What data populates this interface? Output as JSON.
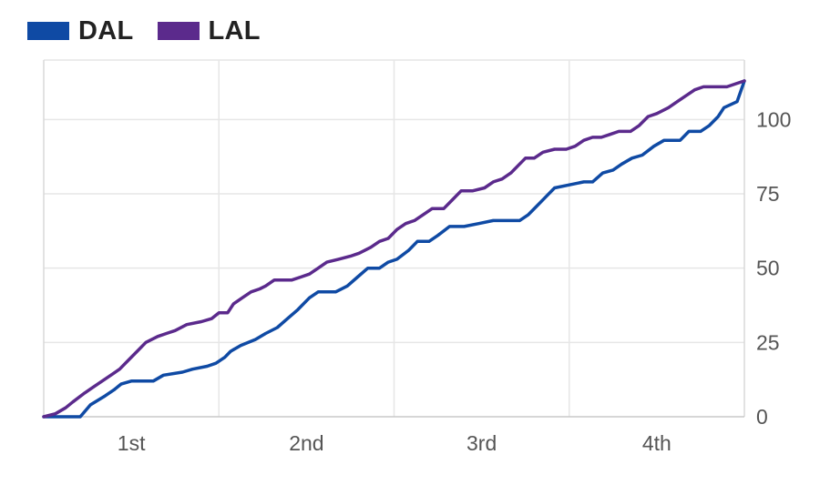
{
  "legend": [
    {
      "label": "DAL",
      "color": "#0f4aa4"
    },
    {
      "label": "LAL",
      "color": "#5b2a8c"
    }
  ],
  "chart_data": {
    "type": "line",
    "x_ticks": [
      "1st",
      "2nd",
      "3rd",
      "4th"
    ],
    "xlim": [
      0,
      48
    ],
    "ylim": [
      0,
      120
    ],
    "y_ticks": [
      0,
      25,
      50,
      75,
      100
    ],
    "y_axis_side": "right",
    "grid": true,
    "legend_position": "top-left",
    "series": [
      {
        "name": "DAL",
        "color": "#0f4aa4",
        "points": [
          [
            0,
            0
          ],
          [
            2.5,
            0
          ],
          [
            3.2,
            4
          ],
          [
            4.2,
            7
          ],
          [
            4.8,
            9
          ],
          [
            5.3,
            11
          ],
          [
            6.0,
            12
          ],
          [
            7.5,
            12
          ],
          [
            8.2,
            14
          ],
          [
            9.5,
            15
          ],
          [
            10.2,
            16
          ],
          [
            11.2,
            17
          ],
          [
            11.8,
            18
          ],
          [
            12.4,
            20
          ],
          [
            12.8,
            22
          ],
          [
            13.5,
            24
          ],
          [
            14.5,
            26
          ],
          [
            15.2,
            28
          ],
          [
            16.0,
            30
          ],
          [
            16.7,
            33
          ],
          [
            17.4,
            36
          ],
          [
            18.2,
            40
          ],
          [
            18.8,
            42
          ],
          [
            20.0,
            42
          ],
          [
            20.8,
            44
          ],
          [
            21.5,
            47
          ],
          [
            22.2,
            50
          ],
          [
            23.0,
            50
          ],
          [
            23.6,
            52
          ],
          [
            24.2,
            53
          ],
          [
            25.0,
            56
          ],
          [
            25.6,
            59
          ],
          [
            26.4,
            59
          ],
          [
            27.0,
            61
          ],
          [
            27.8,
            64
          ],
          [
            28.8,
            64
          ],
          [
            29.8,
            65
          ],
          [
            30.8,
            66
          ],
          [
            32.0,
            66
          ],
          [
            32.6,
            66
          ],
          [
            33.2,
            68
          ],
          [
            33.8,
            71
          ],
          [
            34.4,
            74
          ],
          [
            35.0,
            77
          ],
          [
            36.0,
            78
          ],
          [
            37.0,
            79
          ],
          [
            37.6,
            79
          ],
          [
            38.3,
            82
          ],
          [
            39.0,
            83
          ],
          [
            39.6,
            85
          ],
          [
            40.3,
            87
          ],
          [
            41.0,
            88
          ],
          [
            41.8,
            91
          ],
          [
            42.5,
            93
          ],
          [
            43.6,
            93
          ],
          [
            44.2,
            96
          ],
          [
            45.0,
            96
          ],
          [
            45.6,
            98
          ],
          [
            46.2,
            101
          ],
          [
            46.6,
            104
          ],
          [
            47.5,
            106
          ],
          [
            48,
            113
          ]
        ]
      },
      {
        "name": "LAL",
        "color": "#5b2a8c",
        "points": [
          [
            0,
            0
          ],
          [
            0.8,
            1
          ],
          [
            1.5,
            3
          ],
          [
            2.0,
            5
          ],
          [
            2.8,
            8
          ],
          [
            3.4,
            10
          ],
          [
            4.0,
            12
          ],
          [
            4.6,
            14
          ],
          [
            5.2,
            16
          ],
          [
            5.8,
            19
          ],
          [
            6.4,
            22
          ],
          [
            7.0,
            25
          ],
          [
            7.8,
            27
          ],
          [
            8.4,
            28
          ],
          [
            9.0,
            29
          ],
          [
            9.8,
            31
          ],
          [
            10.8,
            32
          ],
          [
            11.5,
            33
          ],
          [
            12.0,
            35
          ],
          [
            12.6,
            35
          ],
          [
            13.0,
            38
          ],
          [
            13.6,
            40
          ],
          [
            14.2,
            42
          ],
          [
            14.8,
            43
          ],
          [
            15.2,
            44
          ],
          [
            15.8,
            46
          ],
          [
            17.0,
            46
          ],
          [
            17.6,
            47
          ],
          [
            18.2,
            48
          ],
          [
            18.8,
            50
          ],
          [
            19.4,
            52
          ],
          [
            20.2,
            53
          ],
          [
            21.0,
            54
          ],
          [
            21.6,
            55
          ],
          [
            22.4,
            57
          ],
          [
            23.0,
            59
          ],
          [
            23.6,
            60
          ],
          [
            24.2,
            63
          ],
          [
            24.8,
            65
          ],
          [
            25.4,
            66
          ],
          [
            26.0,
            68
          ],
          [
            26.6,
            70
          ],
          [
            27.4,
            70
          ],
          [
            28.0,
            73
          ],
          [
            28.6,
            76
          ],
          [
            29.4,
            76
          ],
          [
            30.2,
            77
          ],
          [
            30.8,
            79
          ],
          [
            31.4,
            80
          ],
          [
            32.0,
            82
          ],
          [
            32.6,
            85
          ],
          [
            33.0,
            87
          ],
          [
            33.6,
            87
          ],
          [
            34.2,
            89
          ],
          [
            35.0,
            90
          ],
          [
            35.8,
            90
          ],
          [
            36.4,
            91
          ],
          [
            37.0,
            93
          ],
          [
            37.6,
            94
          ],
          [
            38.2,
            94
          ],
          [
            38.8,
            95
          ],
          [
            39.4,
            96
          ],
          [
            40.2,
            96
          ],
          [
            40.8,
            98
          ],
          [
            41.4,
            101
          ],
          [
            42.0,
            102
          ],
          [
            42.8,
            104
          ],
          [
            43.4,
            106
          ],
          [
            44.0,
            108
          ],
          [
            44.6,
            110
          ],
          [
            45.2,
            111
          ],
          [
            46.0,
            111
          ],
          [
            46.8,
            111
          ],
          [
            47.4,
            112
          ],
          [
            48,
            113
          ]
        ]
      }
    ]
  }
}
